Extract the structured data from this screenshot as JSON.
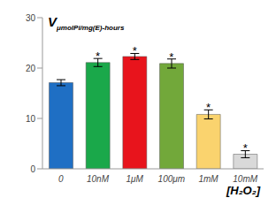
{
  "chart_data": {
    "type": "bar",
    "y_label": "V",
    "y_label_subscript": "μmolPi/mg(E)-hours",
    "x_label": "[H₂O₂]",
    "categories": [
      "0",
      "10nM",
      "1μM",
      "100μm",
      "1mM",
      "10mM"
    ],
    "values": [
      17.1,
      21.1,
      22.3,
      20.9,
      10.8,
      2.9
    ],
    "errors": [
      0.6,
      0.8,
      0.6,
      0.9,
      0.9,
      0.7
    ],
    "colors": [
      "#1f6fc4",
      "#1aa84a",
      "#e8141c",
      "#72a83a",
      "#fad36e",
      "#d9d9d9"
    ],
    "annotation": "*",
    "annotated": [
      false,
      true,
      true,
      true,
      true,
      true
    ],
    "ylim": [
      0,
      30
    ],
    "yticks": [
      0,
      10,
      20,
      30
    ],
    "grid": false
  }
}
